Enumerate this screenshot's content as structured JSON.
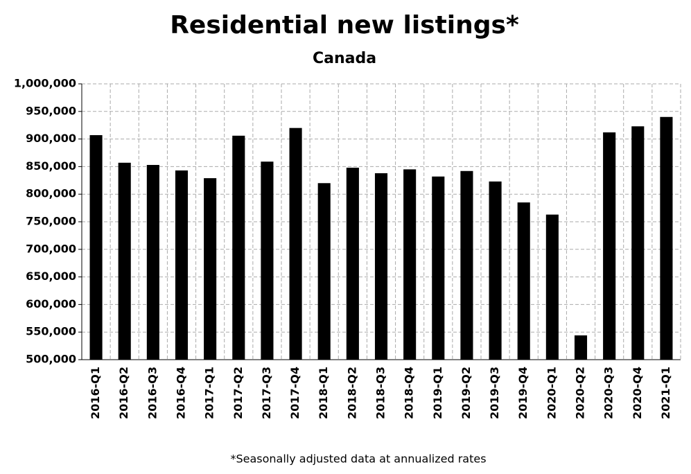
{
  "chart_data": {
    "type": "bar",
    "title": "Residential new listings*",
    "subtitle": "Canada",
    "footnote": "*Seasonally adjusted data at annualized rates",
    "categories": [
      "2016-Q1",
      "2016-Q2",
      "2016-Q3",
      "2016-Q4",
      "2017-Q1",
      "2017-Q2",
      "2017-Q3",
      "2017-Q4",
      "2018-Q1",
      "2018-Q2",
      "2018-Q3",
      "2018-Q4",
      "2019-Q1",
      "2019-Q2",
      "2019-Q3",
      "2019-Q4",
      "2020-Q1",
      "2020-Q2",
      "2020-Q3",
      "2020-Q4",
      "2021-Q1"
    ],
    "values": [
      907000,
      857000,
      853000,
      843000,
      829000,
      906000,
      859000,
      920000,
      820000,
      848000,
      838000,
      845000,
      832000,
      842000,
      823000,
      785000,
      763000,
      544000,
      912000,
      923000,
      940000
    ],
    "color": "#000000",
    "ylim": [
      500000,
      1000000
    ],
    "yticks": [
      {
        "value": 500000,
        "label": "500,000"
      },
      {
        "value": 550000,
        "label": "550,000"
      },
      {
        "value": 600000,
        "label": "600,000"
      },
      {
        "value": 650000,
        "label": "650,000"
      },
      {
        "value": 700000,
        "label": "700,000"
      },
      {
        "value": 750000,
        "label": "750,000"
      },
      {
        "value": 800000,
        "label": "800,000"
      },
      {
        "value": 850000,
        "label": "850,000"
      },
      {
        "value": 900000,
        "label": "900,000"
      },
      {
        "value": 950000,
        "label": "950,000"
      },
      {
        "value": 1000000,
        "label": "1,000,000"
      }
    ],
    "grid": true
  }
}
